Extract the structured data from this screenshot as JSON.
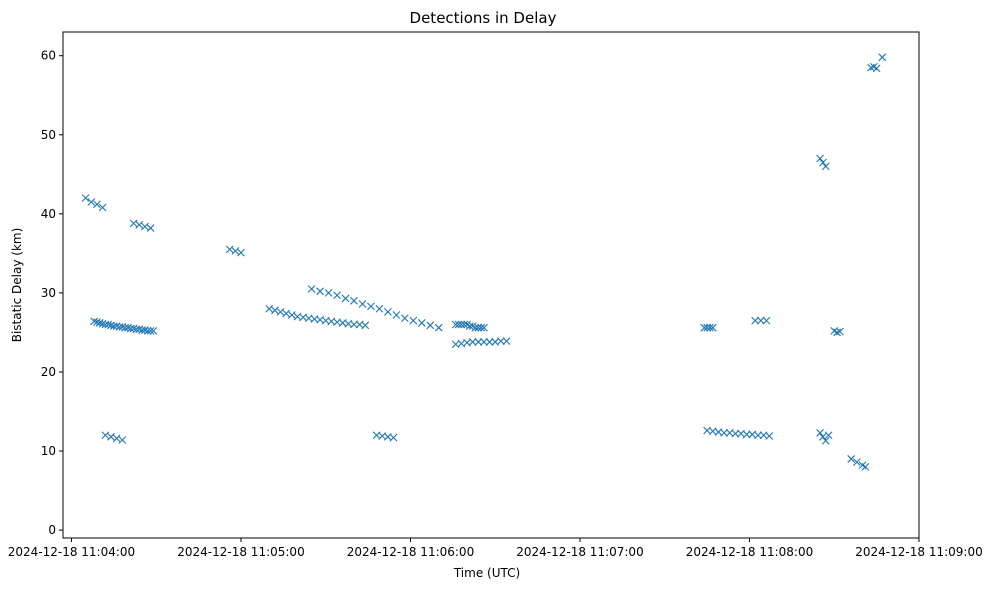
{
  "chart_data": {
    "type": "scatter",
    "title": "Detections in Delay",
    "xlabel": "Time (UTC)",
    "ylabel": "Bistatic Delay (km)",
    "marker": "x",
    "color": "#1f77b4",
    "x_unit": "seconds after 2024-12-18 11:04:00",
    "xlim": [
      -3,
      300
    ],
    "ylim": [
      -1,
      63
    ],
    "x_ticks": [
      {
        "value": 0,
        "label": "2024-12-18 11:04:00"
      },
      {
        "value": 60,
        "label": "2024-12-18 11:05:00"
      },
      {
        "value": 120,
        "label": "2024-12-18 11:06:00"
      },
      {
        "value": 180,
        "label": "2024-12-18 11:07:00"
      },
      {
        "value": 240,
        "label": "2024-12-18 11:08:00"
      },
      {
        "value": 300,
        "label": "2024-12-18 11:09:00"
      }
    ],
    "y_ticks": [
      {
        "value": 0,
        "label": "0"
      },
      {
        "value": 10,
        "label": "10"
      },
      {
        "value": 20,
        "label": "20"
      },
      {
        "value": 30,
        "label": "30"
      },
      {
        "value": 40,
        "label": "40"
      },
      {
        "value": 50,
        "label": "50"
      },
      {
        "value": 60,
        "label": "60"
      }
    ],
    "grid": false,
    "series": [
      {
        "name": "Detections",
        "points": [
          [
            8,
            26.4
          ],
          [
            9,
            26.3
          ],
          [
            10,
            26.2
          ],
          [
            11,
            26.1
          ],
          [
            12,
            26.0
          ],
          [
            13,
            26.0
          ],
          [
            14,
            25.9
          ],
          [
            15,
            25.8
          ],
          [
            16,
            25.8
          ],
          [
            17,
            25.7
          ],
          [
            18,
            25.7
          ],
          [
            19,
            25.6
          ],
          [
            20,
            25.6
          ],
          [
            21,
            25.5
          ],
          [
            22,
            25.5
          ],
          [
            23,
            25.4
          ],
          [
            24,
            25.4
          ],
          [
            25,
            25.3
          ],
          [
            26,
            25.3
          ],
          [
            27,
            25.2
          ],
          [
            28,
            25.2
          ],
          [
            29,
            25.2
          ],
          [
            70,
            28.0
          ],
          [
            72,
            27.8
          ],
          [
            74,
            27.6
          ],
          [
            76,
            27.4
          ],
          [
            78,
            27.2
          ],
          [
            80,
            27.0
          ],
          [
            82,
            26.9
          ],
          [
            84,
            26.8
          ],
          [
            86,
            26.7
          ],
          [
            88,
            26.6
          ],
          [
            90,
            26.5
          ],
          [
            92,
            26.4
          ],
          [
            94,
            26.3
          ],
          [
            96,
            26.2
          ],
          [
            98,
            26.1
          ],
          [
            100,
            26.0
          ],
          [
            102,
            26.0
          ],
          [
            104,
            25.9
          ],
          [
            85,
            30.5
          ],
          [
            88,
            30.2
          ],
          [
            91,
            30.0
          ],
          [
            94,
            29.7
          ],
          [
            97,
            29.3
          ],
          [
            100,
            29.0
          ],
          [
            103,
            28.6
          ],
          [
            106,
            28.3
          ],
          [
            109,
            28.0
          ],
          [
            112,
            27.6
          ],
          [
            115,
            27.2
          ],
          [
            118,
            26.8
          ],
          [
            121,
            26.5
          ],
          [
            124,
            26.2
          ],
          [
            127,
            25.9
          ],
          [
            130,
            25.6
          ],
          [
            136,
            26.0
          ],
          [
            137,
            26.0
          ],
          [
            138,
            26.0
          ],
          [
            139,
            26.0
          ],
          [
            140,
            26.0
          ],
          [
            141,
            25.8
          ],
          [
            142,
            25.8
          ],
          [
            143,
            25.6
          ],
          [
            144,
            25.6
          ],
          [
            145,
            25.6
          ],
          [
            146,
            25.6
          ],
          [
            136,
            23.5
          ],
          [
            138,
            23.6
          ],
          [
            140,
            23.7
          ],
          [
            142,
            23.8
          ],
          [
            144,
            23.8
          ],
          [
            146,
            23.8
          ],
          [
            148,
            23.8
          ],
          [
            150,
            23.8
          ],
          [
            152,
            23.9
          ],
          [
            154,
            23.9
          ],
          [
            224,
            25.6
          ],
          [
            225,
            25.6
          ],
          [
            226,
            25.6
          ],
          [
            227,
            25.6
          ],
          [
            225,
            12.6
          ],
          [
            227,
            12.5
          ],
          [
            229,
            12.4
          ],
          [
            231,
            12.3
          ],
          [
            233,
            12.3
          ],
          [
            235,
            12.2
          ],
          [
            237,
            12.2
          ],
          [
            239,
            12.1
          ],
          [
            241,
            12.1
          ],
          [
            243,
            12.0
          ],
          [
            245,
            12.0
          ],
          [
            247,
            11.9
          ],
          [
            22,
            38.8
          ],
          [
            24,
            38.6
          ],
          [
            26,
            38.4
          ],
          [
            28,
            38.2
          ],
          [
            12,
            12
          ],
          [
            14,
            11.8
          ],
          [
            16,
            11.6
          ],
          [
            18,
            11.4
          ],
          [
            56,
            35.5
          ],
          [
            58,
            35.3
          ],
          [
            60,
            35.1
          ],
          [
            108,
            12
          ],
          [
            110,
            11.9
          ],
          [
            112,
            11.8
          ],
          [
            114,
            11.7
          ],
          [
            276,
            9.0
          ],
          [
            278,
            8.6
          ],
          [
            280,
            8.2
          ],
          [
            281,
            8.0
          ],
          [
            265,
            12.3
          ],
          [
            266,
            11.8
          ],
          [
            267,
            11.3
          ],
          [
            268,
            12.0
          ],
          [
            270,
            25.2
          ],
          [
            271,
            25.0
          ],
          [
            272,
            25.1
          ],
          [
            242,
            26.5
          ],
          [
            244,
            26.5
          ],
          [
            246,
            26.5
          ],
          [
            5,
            42
          ],
          [
            7,
            41.5
          ],
          [
            9,
            41.2
          ],
          [
            11,
            40.8
          ],
          [
            265,
            47.0
          ],
          [
            266,
            46.5
          ],
          [
            267,
            46.0
          ],
          [
            283,
            58.5
          ],
          [
            284,
            58.6
          ],
          [
            285,
            58.4
          ],
          [
            287,
            59.8
          ]
        ]
      }
    ]
  }
}
